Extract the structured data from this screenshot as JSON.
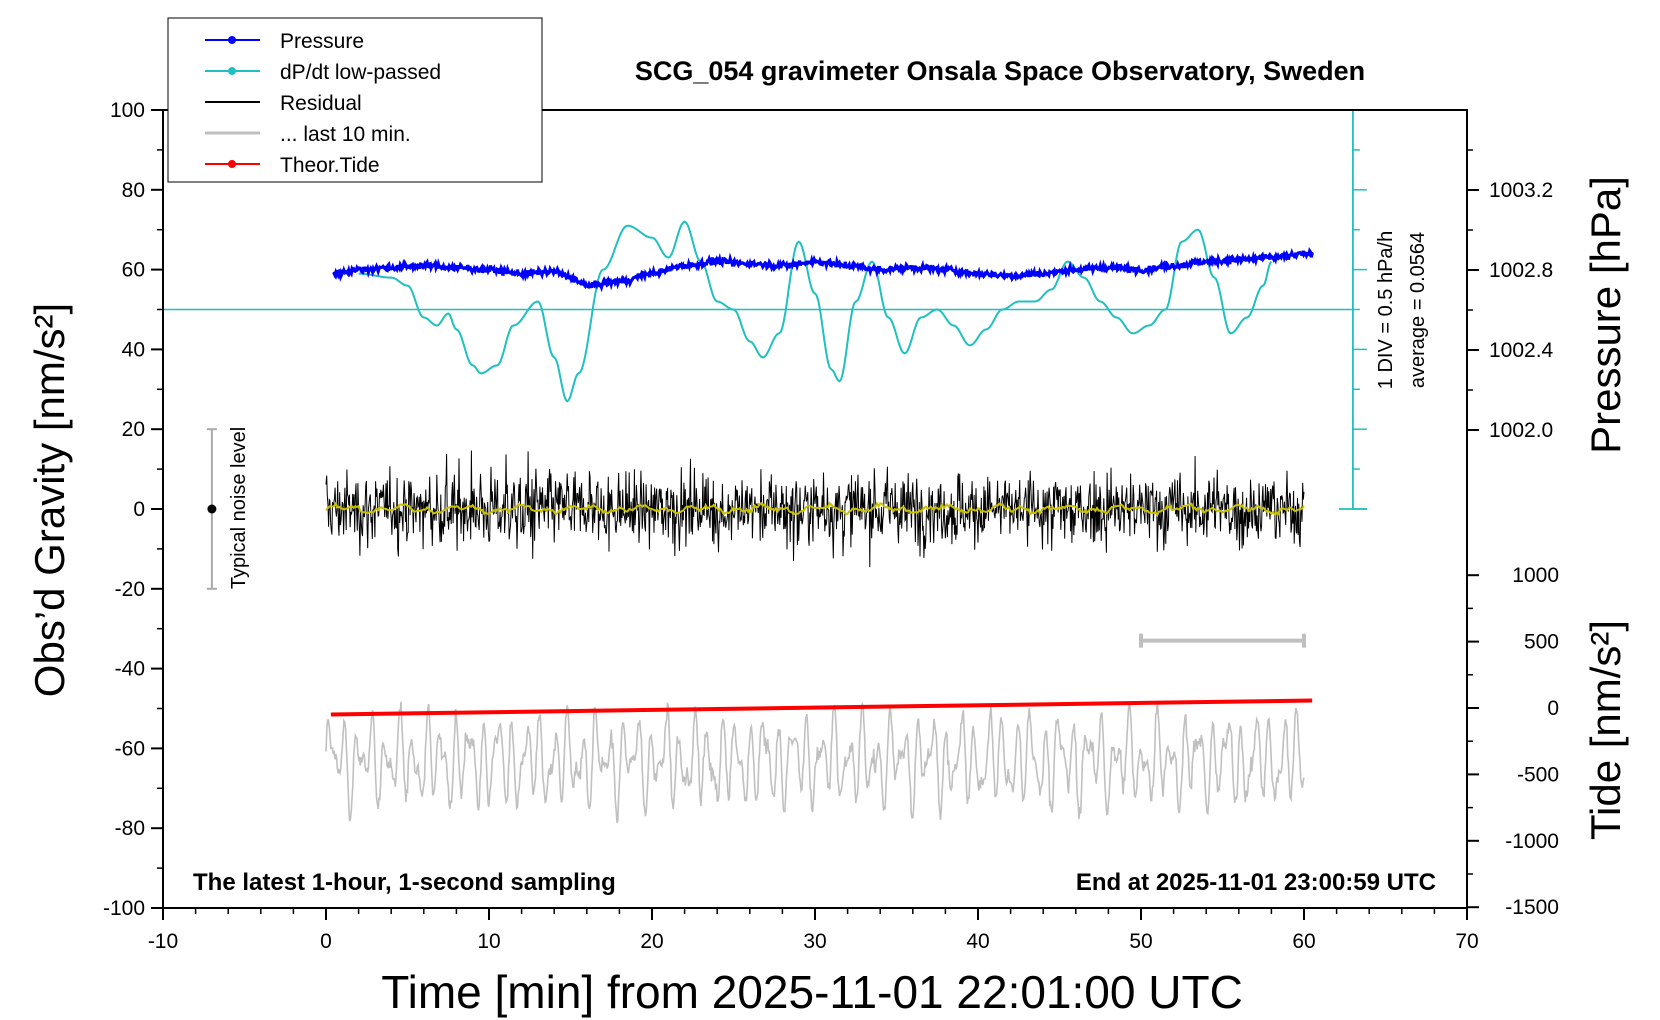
{
  "chart_data": {
    "type": "line",
    "title": "SCG_054 gravimeter Onsala Space Observatory, Sweden",
    "xlabel": "Time [min] from 2025-11-01 22:01:00 UTC",
    "ylabel_left": "Obs’d Gravity [nm/s²]",
    "ylabel_right_top": "Pressure [hPa]",
    "ylabel_right_bottom": "Tide [nm/s²]",
    "xlim": [
      -10,
      70
    ],
    "ylim_left": [
      -100,
      100
    ],
    "x_ticks": [
      "-10",
      "0",
      "10",
      "20",
      "30",
      "40",
      "50",
      "60",
      "70"
    ],
    "y_ticks_left": [
      "-100",
      "-80",
      "-60",
      "-40",
      "-20",
      "0",
      "20",
      "40",
      "60",
      "80",
      "100"
    ],
    "pressure_ticks": [
      "1002.0",
      "1002.4",
      "1002.8",
      "1003.2"
    ],
    "tide_ticks": [
      "-1500",
      "-1000",
      "-500",
      "0",
      "500",
      "1000"
    ],
    "grid": false,
    "legend_position": "top-left",
    "legend": [
      {
        "label": "Pressure",
        "color": "#0000ff",
        "marker": true
      },
      {
        "label": "dP/dt low-passed",
        "color": "#20c0c0",
        "marker": true
      },
      {
        "label": "Residual",
        "color": "#000000",
        "marker": false
      },
      {
        "label": "... last 10 min.",
        "color": "#c0c0c0",
        "marker": false
      },
      {
        "label": "Theor.Tide",
        "color": "#ff0000",
        "marker": true
      }
    ],
    "annotations": {
      "bottom_left": "The latest 1-hour, 1-second sampling",
      "bottom_right": "End at 2025-11-01 23:00:59 UTC",
      "noise_label": "Typical noise level",
      "div_label": "1 DIV = 0.5 hPa/h",
      "average_label": "average = 0.0564"
    },
    "colors": {
      "pressure": "#0000ff",
      "dpdt": "#20c0c0",
      "residual": "#000000",
      "residual_smooth": "#c8c000",
      "last10": "#c0c0c0",
      "tide": "#ff0000"
    },
    "series": [
      {
        "key": "pressure",
        "x": [
          0.5,
          2,
          4,
          6,
          8,
          10,
          12,
          14,
          15,
          16,
          18,
          20,
          22,
          24,
          26,
          28,
          30,
          32,
          34,
          36,
          38,
          40,
          42,
          44,
          46,
          48,
          50,
          52,
          54,
          56,
          58,
          60.5
        ],
        "y": [
          59,
          60,
          60.5,
          61,
          60.5,
          60,
          59,
          59.5,
          58,
          56,
          57,
          59,
          61,
          62,
          61.5,
          61,
          62,
          61,
          60,
          60.5,
          60,
          59,
          58.5,
          59,
          60,
          60.5,
          60,
          61,
          62,
          62.5,
          63,
          64
        ]
      },
      {
        "key": "dpdt",
        "x": [
          2,
          4,
          5,
          6,
          6.8,
          7.5,
          8,
          9,
          9.5,
          10.5,
          11.5,
          13,
          14,
          14.8,
          15.5,
          17,
          18.5,
          20,
          21,
          22,
          23,
          24,
          25,
          26,
          26.8,
          27.8,
          29,
          30,
          31,
          31.5,
          32.5,
          33.5,
          34.5,
          35.5,
          36.5,
          37.5,
          38.5,
          39.5,
          40.5,
          41.5,
          42.5,
          43.5,
          44.5,
          45.5,
          46.5,
          47.5,
          48.5,
          49.5,
          50.5,
          51.5,
          52.5,
          53.5,
          54.5,
          55.5,
          56.5,
          57.5,
          58
        ],
        "y": [
          59,
          58,
          56,
          48,
          46,
          49,
          45,
          36,
          34,
          36,
          46,
          52,
          38,
          27,
          34,
          60,
          71,
          68,
          63,
          72,
          62,
          52,
          50,
          42,
          38,
          44,
          67,
          54,
          35,
          32,
          52,
          62,
          48,
          39,
          48,
          50,
          46,
          41,
          45,
          50,
          52,
          52,
          55,
          62,
          58,
          52,
          48,
          44,
          46,
          50,
          67,
          70,
          58,
          44,
          48,
          56,
          62
        ]
      },
      {
        "key": "tide",
        "x": [
          0.3,
          60.5
        ],
        "y": [
          -51.5,
          -48
        ]
      }
    ]
  }
}
